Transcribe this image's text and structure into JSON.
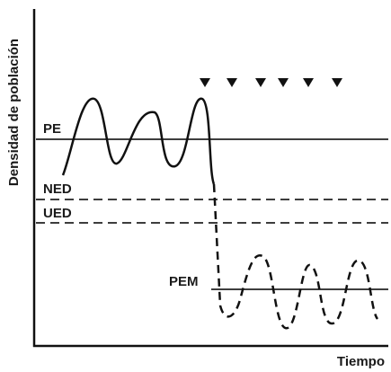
{
  "axes": {
    "y_label": "Densidad de población",
    "x_label": "Tiempo"
  },
  "levels": [
    {
      "label": "PE"
    },
    {
      "label": "NED"
    },
    {
      "label": "UED"
    },
    {
      "label": "PEM"
    }
  ]
}
